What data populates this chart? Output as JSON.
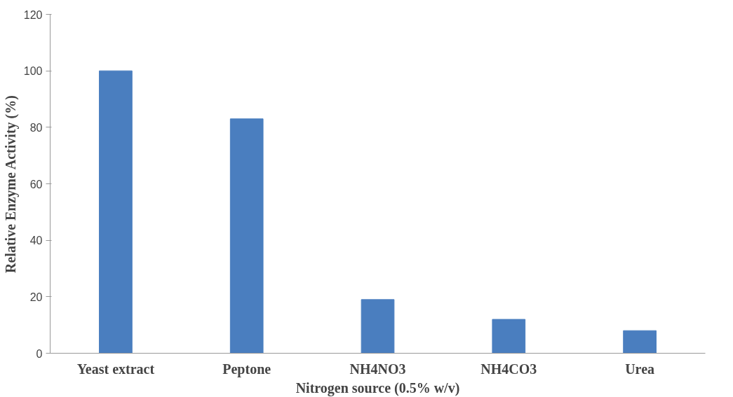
{
  "chart_data": {
    "type": "bar",
    "xlabel": "Nitrogen source (0.5% w/v)",
    "ylabel": "Relative Enzyme Activity (%)",
    "categories": [
      "Yeast extract",
      "Peptone",
      "NH4NO3",
      "NH4CO3",
      "Urea"
    ],
    "values": [
      100,
      83,
      19,
      12,
      8
    ],
    "color": "#4a7ebf",
    "ylim": [
      0,
      120
    ],
    "yticks": [
      0,
      20,
      40,
      60,
      80,
      100,
      120
    ],
    "grid": false
  }
}
